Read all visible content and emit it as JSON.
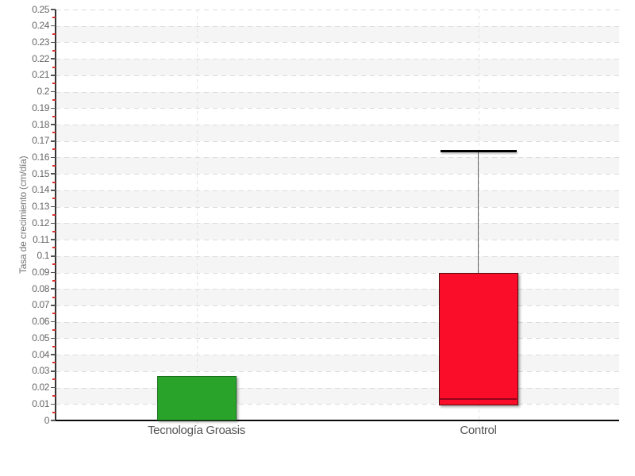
{
  "chart_data": {
    "type": "boxplot",
    "title": "",
    "xlabel": "",
    "ylabel": "Tasa de crecimiento (cm/día)",
    "ylim": [
      0,
      0.25
    ],
    "y_tick_step": 0.01,
    "y_minor_tick_step": 0.005,
    "grid": "horizontal dashed gridlines every 0.01 with alternating light-gray bands; faint vertical dashed line at each category center",
    "legend": "none",
    "categories": [
      "Tecnología Groasis",
      "Control"
    ],
    "series": [
      {
        "name": "Tecnología Groasis",
        "box_low": 0,
        "box_high": 0.027,
        "fill": "#2aa32a",
        "border": "#1b6e1b"
      },
      {
        "name": "Control",
        "box_low": 0.009,
        "box_high": 0.09,
        "median": 0.013,
        "whisker_high": 0.164,
        "fill": "#f90d28",
        "border": "#550e0e",
        "median_color": "#99001a"
      }
    ],
    "colors": {
      "background": "#ffffff",
      "band": "#f5f5f5",
      "gridline": "#dcdcdc",
      "axis_line": "#0b0b0b",
      "major_tick": "#555555",
      "minor_tick": "#e03131",
      "tick_label": "#666666",
      "category_label": "#555555",
      "axis_title": "#777777",
      "whisker_line": "#666666",
      "whisker_cap": "#000000"
    }
  }
}
